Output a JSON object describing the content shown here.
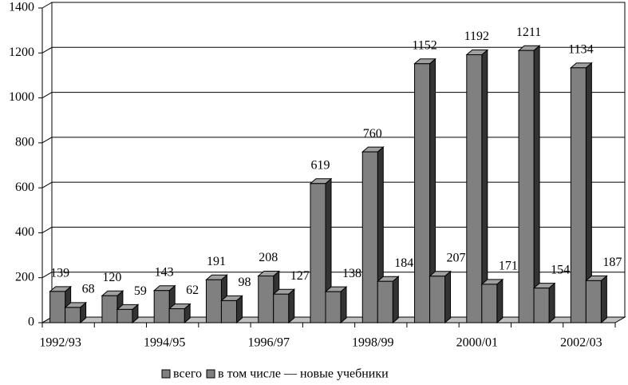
{
  "chart_data": {
    "type": "bar3d",
    "categories": [
      "1992/93",
      null,
      "1994/95",
      null,
      "1996/97",
      null,
      "1998/99",
      null,
      "2000/01",
      null,
      "2002/03"
    ],
    "series": [
      {
        "name": "всего",
        "color": "#808080",
        "values": [
          139,
          120,
          143,
          191,
          208,
          619,
          760,
          1152,
          1192,
          1211,
          1134
        ]
      },
      {
        "name": "в том числе — новые учебники",
        "color": "#808080",
        "values": [
          68,
          59,
          62,
          98,
          127,
          138,
          184,
          207,
          171,
          154,
          187
        ]
      }
    ],
    "ylim": [
      0,
      1400
    ],
    "yticks": [
      0,
      200,
      400,
      600,
      800,
      1000,
      1200,
      1400
    ],
    "grid": true
  }
}
